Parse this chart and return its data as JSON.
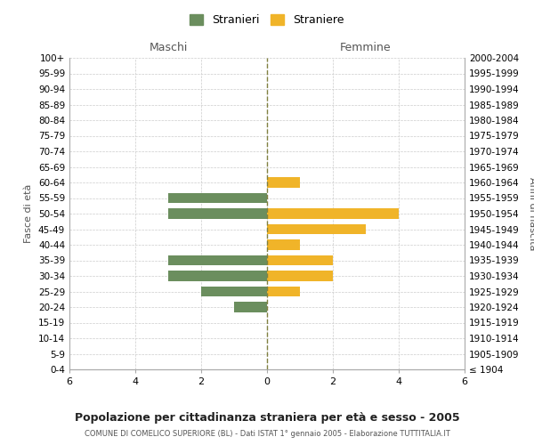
{
  "age_groups": [
    "100+",
    "95-99",
    "90-94",
    "85-89",
    "80-84",
    "75-79",
    "70-74",
    "65-69",
    "60-64",
    "55-59",
    "50-54",
    "45-49",
    "40-44",
    "35-39",
    "30-34",
    "25-29",
    "20-24",
    "15-19",
    "10-14",
    "5-9",
    "0-4"
  ],
  "birth_years": [
    "≤ 1904",
    "1905-1909",
    "1910-1914",
    "1915-1919",
    "1920-1924",
    "1925-1929",
    "1930-1934",
    "1935-1939",
    "1940-1944",
    "1945-1949",
    "1950-1954",
    "1955-1959",
    "1960-1964",
    "1965-1969",
    "1970-1974",
    "1975-1979",
    "1980-1984",
    "1985-1989",
    "1990-1994",
    "1995-1999",
    "2000-2004"
  ],
  "maschi": [
    0,
    0,
    0,
    0,
    0,
    0,
    0,
    0,
    0,
    3,
    3,
    0,
    0,
    3,
    3,
    2,
    1,
    0,
    0,
    0,
    0
  ],
  "femmine": [
    0,
    0,
    0,
    0,
    0,
    0,
    0,
    0,
    1,
    0,
    4,
    3,
    1,
    2,
    2,
    1,
    0,
    0,
    0,
    0,
    0
  ],
  "color_maschi": "#6b8e5e",
  "color_femmine": "#f0b429",
  "xlim": 6,
  "title": "Popolazione per cittadinanza straniera per età e sesso - 2005",
  "subtitle": "COMUNE DI COMELICO SUPERIORE (BL) - Dati ISTAT 1° gennaio 2005 - Elaborazione TUTTITALIA.IT",
  "ylabel_left": "Fasce di età",
  "ylabel_right": "Anni di nascita",
  "legend_maschi": "Stranieri",
  "legend_femmine": "Straniere",
  "header_left": "Maschi",
  "header_right": "Femmine",
  "bg_color": "#ffffff",
  "grid_color": "#cccccc",
  "center_line_color": "#808040"
}
